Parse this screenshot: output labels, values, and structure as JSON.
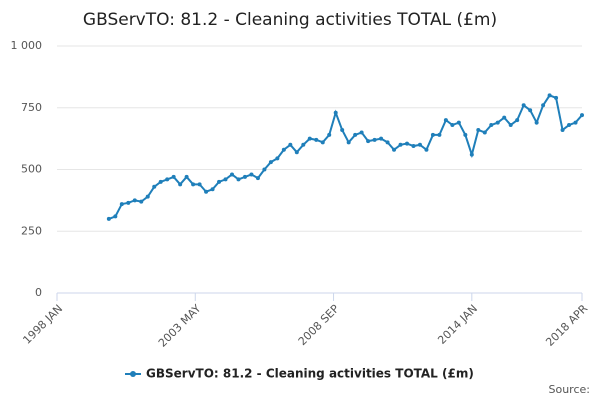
{
  "chart_data": {
    "type": "line",
    "title": "GBServTO: 81.2 - Cleaning activities TOTAL (£m)",
    "source": "Source:",
    "x": [
      "2000 JAN",
      "2000 APR",
      "2000 JUL",
      "2000 OCT",
      "2001 JAN",
      "2001 APR",
      "2001 JUL",
      "2001 OCT",
      "2002 JAN",
      "2002 APR",
      "2002 JUL",
      "2002 OCT",
      "2003 JAN",
      "2003 APR",
      "2003 JUL",
      "2003 OCT",
      "2004 JAN",
      "2004 APR",
      "2004 JUL",
      "2004 OCT",
      "2005 JAN",
      "2005 APR",
      "2005 JUL",
      "2005 OCT",
      "2006 JAN",
      "2006 APR",
      "2006 JUL",
      "2006 OCT",
      "2007 JAN",
      "2007 APR",
      "2007 JUL",
      "2007 OCT",
      "2008 JAN",
      "2008 APR",
      "2008 JUL",
      "2008 OCT",
      "2009 JAN",
      "2009 APR",
      "2009 JUL",
      "2009 OCT",
      "2010 JAN",
      "2010 APR",
      "2010 JUL",
      "2010 OCT",
      "2011 JAN",
      "2011 APR",
      "2011 JUL",
      "2011 OCT",
      "2012 JAN",
      "2012 APR",
      "2012 JUL",
      "2012 OCT",
      "2013 JAN",
      "2013 APR",
      "2013 JUL",
      "2013 OCT",
      "2014 JAN",
      "2014 APR",
      "2014 JUL",
      "2014 OCT",
      "2015 JAN",
      "2015 APR",
      "2015 JUL",
      "2015 OCT",
      "2016 JAN",
      "2016 APR",
      "2016 JUL",
      "2016 OCT",
      "2017 JAN",
      "2017 APR",
      "2017 JUL",
      "2017 OCT",
      "2018 JAN",
      "2018 APR"
    ],
    "series": [
      {
        "name": "GBServTO: 81.2 - Cleaning activities TOTAL (£m)",
        "color": "#1f7fba",
        "values": [
          300,
          310,
          360,
          365,
          375,
          370,
          390,
          430,
          450,
          460,
          470,
          440,
          470,
          440,
          440,
          410,
          420,
          450,
          460,
          480,
          460,
          470,
          480,
          465,
          500,
          530,
          545,
          580,
          600,
          570,
          600,
          625,
          620,
          610,
          640,
          730,
          660,
          610,
          640,
          650,
          615,
          620,
          625,
          610,
          580,
          600,
          605,
          595,
          600,
          580,
          640,
          640,
          700,
          680,
          690,
          640,
          560,
          660,
          650,
          680,
          690,
          710,
          680,
          700,
          760,
          740,
          690,
          760,
          800,
          790,
          660,
          680,
          690,
          720
        ]
      }
    ],
    "xlim": [
      "1998 JAN",
      "2018 APR"
    ],
    "xticks": [
      "1998 JAN",
      "2003 MAY",
      "2008 SEP",
      "2014 JAN",
      "2018 APR"
    ],
    "ylim": [
      0,
      1000
    ],
    "yticks": [
      0,
      250,
      500,
      750,
      {
        "value": 1000,
        "label": "1 000"
      }
    ],
    "grid": true
  }
}
